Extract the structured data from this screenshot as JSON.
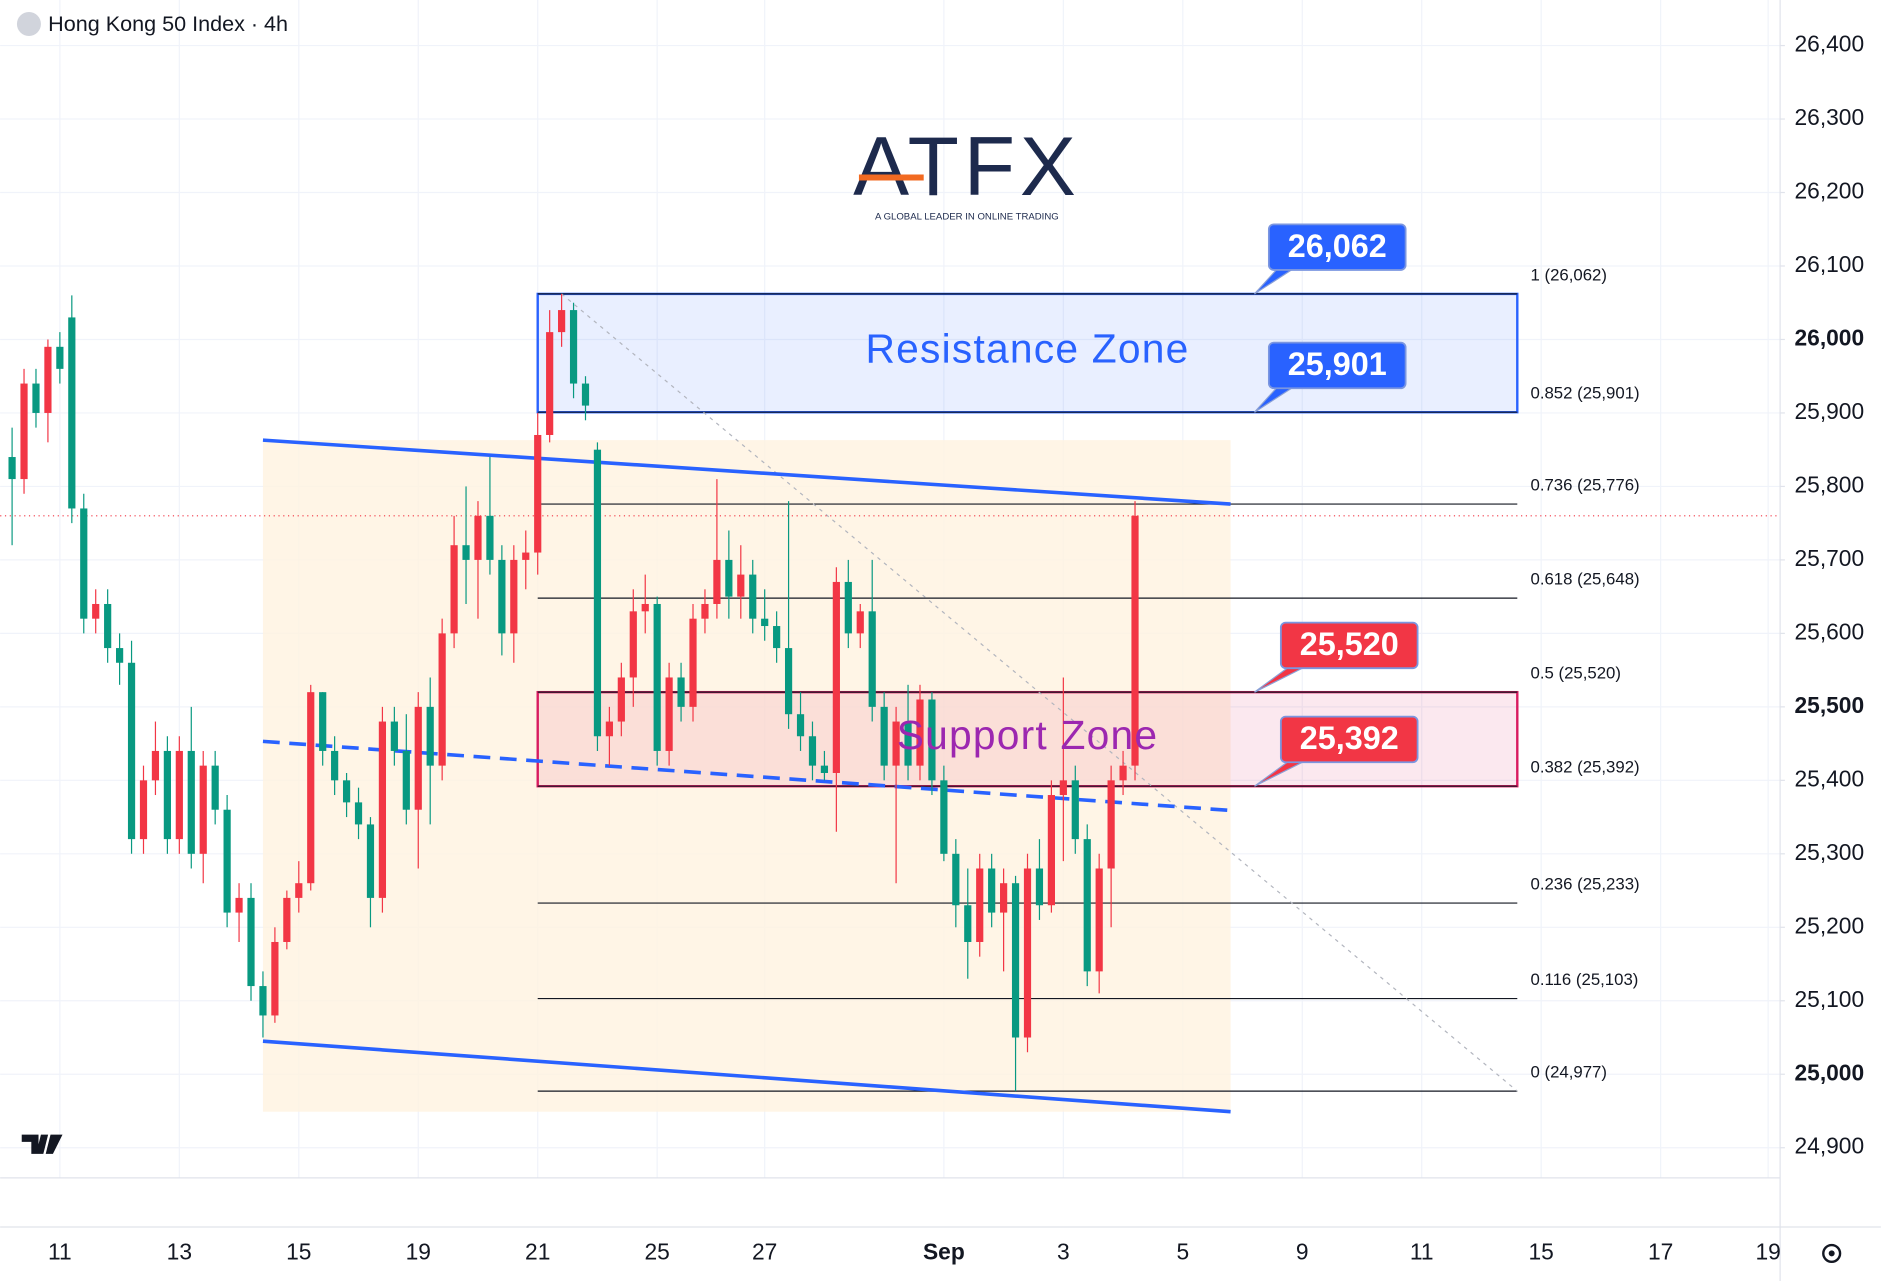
{
  "chart_data": {
    "type": "candlestick",
    "title": "Hong Kong 50 Index · 4h",
    "logo": {
      "name": "ATFX",
      "tagline": "A GLOBAL LEADER IN ONLINE TRADING"
    },
    "up_color": "#f23645",
    "down_color": "#089981",
    "grid": true,
    "xlim": [
      -1,
      148
    ],
    "ylim": [
      24859,
      26462
    ],
    "xticks": [
      {
        "value": 4,
        "label": "11"
      },
      {
        "value": 14,
        "label": "13"
      },
      {
        "value": 24,
        "label": "15"
      },
      {
        "value": 34,
        "label": "19"
      },
      {
        "value": 44,
        "label": "21"
      },
      {
        "value": 54,
        "label": "25"
      },
      {
        "value": 63,
        "label": "27"
      },
      {
        "value": 78,
        "label": "Sep"
      },
      {
        "value": 88,
        "label": "3"
      },
      {
        "value": 98,
        "label": "5"
      },
      {
        "value": 108,
        "label": "9"
      },
      {
        "value": 118,
        "label": "11"
      },
      {
        "value": 128,
        "label": "15"
      },
      {
        "value": 138,
        "label": "17"
      },
      {
        "value": 147,
        "label": "19"
      }
    ],
    "yticks": [
      {
        "value": 24900,
        "label": "24,900"
      },
      {
        "value": 25000,
        "label": "25,000"
      },
      {
        "value": 25100,
        "label": "25,100"
      },
      {
        "value": 25200,
        "label": "25,200"
      },
      {
        "value": 25300,
        "label": "25,300"
      },
      {
        "value": 25400,
        "label": "25,400"
      },
      {
        "value": 25500,
        "label": "25,500"
      },
      {
        "value": 25600,
        "label": "25,600"
      },
      {
        "value": 25700,
        "label": "25,700"
      },
      {
        "value": 25800,
        "label": "25,800"
      },
      {
        "value": 25900,
        "label": "25,900"
      },
      {
        "value": 26000,
        "label": "26,000"
      },
      {
        "value": 26100,
        "label": "26,100"
      },
      {
        "value": 26200,
        "label": "26,200"
      },
      {
        "value": 26300,
        "label": "26,300"
      },
      {
        "value": 26400,
        "label": "26,400"
      }
    ],
    "candles": {
      "x": [
        0,
        1,
        2,
        3,
        4,
        5,
        6,
        7,
        8,
        9,
        10,
        11,
        12,
        13,
        14,
        15,
        16,
        17,
        18,
        19,
        20,
        21,
        22,
        23,
        24,
        25,
        26,
        27,
        28,
        29,
        30,
        31,
        32,
        33,
        34,
        35,
        36,
        37,
        38,
        39,
        40,
        41,
        42,
        43,
        44,
        45,
        46,
        47,
        48,
        49,
        50,
        51,
        52,
        53,
        54,
        55,
        56,
        57,
        58,
        59,
        60,
        61,
        62,
        63,
        64,
        65,
        66,
        67,
        68,
        69,
        70,
        71,
        72,
        73,
        74,
        75,
        76,
        77,
        78,
        79,
        80,
        81,
        82,
        83,
        84,
        85,
        86,
        87,
        88,
        89,
        90,
        91,
        92,
        93,
        94
      ],
      "open": [
        25840,
        25810,
        25940,
        25900,
        25990,
        26030,
        25770,
        25620,
        25640,
        25580,
        25560,
        25320,
        25400,
        25440,
        25320,
        25440,
        25300,
        25420,
        25360,
        25220,
        25240,
        25120,
        25080,
        25180,
        25240,
        25260,
        25520,
        25440,
        25400,
        25370,
        25340,
        25240,
        25480,
        25440,
        25360,
        25500,
        25420,
        25600,
        25720,
        25700,
        25760,
        25700,
        25600,
        25700,
        25710,
        25870,
        26010,
        26040,
        25940,
        25850,
        25460,
        25480,
        25540,
        25630,
        25640,
        25440,
        25540,
        25500,
        25620,
        25640,
        25700,
        25650,
        25680,
        25620,
        25610,
        25580,
        25490,
        25460,
        25420,
        25410,
        25670,
        25600,
        25630,
        25500,
        25420,
        25480,
        25420,
        25510,
        25400,
        25300,
        25230,
        25180,
        25280,
        25220,
        25260,
        25050,
        25280,
        25230,
        25380,
        25400,
        25320,
        25140,
        25280,
        25400,
        25420
      ],
      "high": [
        25880,
        25960,
        25960,
        26000,
        26010,
        26060,
        25790,
        25660,
        25660,
        25600,
        25590,
        25420,
        25480,
        25460,
        25460,
        25500,
        25440,
        25440,
        25380,
        25260,
        25260,
        25140,
        25200,
        25250,
        25290,
        25530,
        25520,
        25460,
        25410,
        25390,
        25350,
        25500,
        25500,
        25490,
        25520,
        25540,
        25620,
        25760,
        25800,
        25780,
        25840,
        25720,
        25720,
        25740,
        25900,
        26040,
        26062,
        26050,
        25950,
        25860,
        25500,
        25560,
        25660,
        25680,
        25650,
        25560,
        25560,
        25640,
        25660,
        25810,
        25740,
        25720,
        25700,
        25660,
        25630,
        25780,
        25520,
        25480,
        25440,
        25690,
        25700,
        25640,
        25700,
        25520,
        25500,
        25530,
        25530,
        25520,
        25420,
        25320,
        25280,
        25300,
        25300,
        25280,
        25270,
        25300,
        25320,
        25400,
        25540,
        25420,
        25340,
        25300,
        25420,
        25440,
        25780
      ],
      "low": [
        25720,
        25790,
        25880,
        25860,
        25940,
        25750,
        25600,
        25600,
        25560,
        25530,
        25300,
        25300,
        25380,
        25300,
        25300,
        25280,
        25260,
        25340,
        25200,
        25180,
        25100,
        25050,
        25070,
        25170,
        25220,
        25250,
        25420,
        25380,
        25350,
        25320,
        25200,
        25220,
        25420,
        25340,
        25280,
        25340,
        25400,
        25580,
        25640,
        25620,
        25680,
        25570,
        25560,
        25660,
        25680,
        25860,
        25990,
        25920,
        25890,
        25440,
        25420,
        25460,
        25500,
        25600,
        25420,
        25420,
        25480,
        25480,
        25600,
        25620,
        25620,
        25620,
        25600,
        25590,
        25560,
        25470,
        25440,
        25400,
        25400,
        25330,
        25580,
        25580,
        25480,
        25400,
        25260,
        25400,
        25400,
        25380,
        25290,
        25200,
        25130,
        25160,
        25200,
        25140,
        24977,
        25030,
        25210,
        25220,
        25290,
        25300,
        25120,
        25110,
        25200,
        25380,
        25400
      ],
      "close": [
        25810,
        25940,
        25900,
        25990,
        25960,
        25770,
        25620,
        25640,
        25580,
        25560,
        25320,
        25400,
        25440,
        25320,
        25440,
        25300,
        25420,
        25360,
        25220,
        25240,
        25120,
        25080,
        25180,
        25240,
        25260,
        25520,
        25440,
        25400,
        25370,
        25340,
        25240,
        25480,
        25440,
        25360,
        25500,
        25420,
        25600,
        25720,
        25700,
        25760,
        25700,
        25600,
        25700,
        25710,
        25870,
        26010,
        26040,
        25940,
        25910,
        25460,
        25480,
        25540,
        25630,
        25640,
        25440,
        25540,
        25500,
        25620,
        25640,
        25700,
        25650,
        25680,
        25620,
        25610,
        25580,
        25490,
        25460,
        25420,
        25410,
        25670,
        25600,
        25630,
        25500,
        25420,
        25480,
        25420,
        25510,
        25400,
        25300,
        25230,
        25180,
        25280,
        25220,
        25260,
        25050,
        25280,
        25230,
        25380,
        25400,
        25320,
        25140,
        25280,
        25400,
        25420,
        25760
      ]
    },
    "channel": {
      "color": "#2962ff",
      "fill": "#fff3e0",
      "upper": {
        "x": [
          21,
          102
        ],
        "y": [
          25863,
          25776
        ]
      },
      "middle": {
        "x": [
          21,
          102
        ],
        "y": [
          25453,
          25359
        ]
      },
      "lower": {
        "x": [
          21,
          102
        ],
        "y": [
          25045,
          24949
        ]
      }
    },
    "zones": [
      {
        "label": "Resistance Zone",
        "range": [
          25901,
          26062
        ],
        "color": "#2962ff",
        "x": [
          44,
          126
        ]
      },
      {
        "label": "Support Zone",
        "range": [
          25392,
          25520
        ],
        "color": "#d81b60",
        "text_color": "#9c27b0",
        "x": [
          44,
          126
        ]
      }
    ],
    "fib": {
      "x": [
        44,
        126
      ],
      "levels": [
        {
          "value": 26062,
          "label": "1 (26,062)"
        },
        {
          "value": 25901,
          "label": "0.852 (25,901)"
        },
        {
          "value": 25776,
          "label": "0.736 (25,776)"
        },
        {
          "value": 25648,
          "label": "0.618 (25,648)"
        },
        {
          "value": 25520,
          "label": "0.5 (25,520)"
        },
        {
          "value": 25392,
          "label": "0.382 (25,392)"
        },
        {
          "value": 25233,
          "label": "0.236 (25,233)"
        },
        {
          "value": 25103,
          "label": "0.116 (25,103)"
        },
        {
          "value": 24977,
          "label": "0 (24,977)"
        }
      ]
    },
    "trend_line": {
      "x": [
        46,
        126
      ],
      "y": [
        26062,
        24977
      ]
    },
    "callouts": {
      "x": 104,
      "values": [
        26062,
        25901,
        25520,
        25392
      ],
      "value_labels": [
        "26,062",
        "25,901",
        "25,520",
        "25,392"
      ],
      "colors": [
        "#2962ff",
        "#2962ff",
        "#f23645",
        "#f23645"
      ]
    }
  }
}
